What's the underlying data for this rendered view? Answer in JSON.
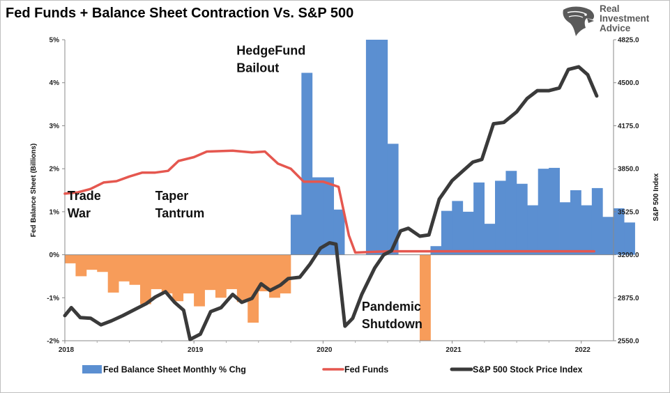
{
  "chart_data": {
    "type": "bar",
    "title": "Fed Funds + Balance Sheet Contraction Vs. S&P 500",
    "ylabel_left": "Fed Balance Sheet (Billions)",
    "ylabel_right": "S&P 500 Index",
    "xlabel": "",
    "left_ylim": [
      -2,
      5
    ],
    "left_ticks": [
      "-2%",
      "-1%",
      "0%",
      "1%",
      "2%",
      "3%",
      "4%",
      "5%"
    ],
    "right_ylim": [
      2550,
      4825
    ],
    "right_ticks": [
      "2550.0",
      "2875.0",
      "3200.0",
      "3525.0",
      "3850.0",
      "4175.0",
      "4500.0",
      "4825.0"
    ],
    "x_range": [
      2018.0,
      2022.25
    ],
    "x_ticks": [
      {
        "label": "2018",
        "value": 2018.0
      },
      {
        "label": "2019",
        "value": 2019.0
      },
      {
        "label": "2020",
        "value": 2020.0
      },
      {
        "label": "2021",
        "value": 2021.0
      },
      {
        "label": "2022",
        "value": 2022.0
      }
    ],
    "bar_colors": {
      "positive": "#5b8fd1",
      "negative": "#f79c5a"
    },
    "series": [
      {
        "name": "Fed Balance Sheet Monthly % Chg",
        "kind": "bar",
        "color": "#5b8fd1",
        "x_start": 2018.0,
        "x_step": 0.0833,
        "values": [
          -0.2,
          -0.5,
          -0.35,
          -0.4,
          -0.88,
          -0.62,
          -0.7,
          -1.15,
          -0.8,
          -0.9,
          -1.08,
          -0.9,
          -1.2,
          -0.82,
          -1.0,
          -0.8,
          -1.1,
          -1.58,
          -0.85,
          -1.0,
          -0.9,
          0.93,
          4.23,
          1.8,
          1.8,
          1.05,
          0.0,
          0.0,
          5.0,
          5.0,
          2.58,
          0.0,
          0.0,
          -2.0,
          0.2,
          1.02,
          1.25,
          1.0,
          1.68,
          0.72,
          1.72,
          1.95,
          1.65,
          1.15,
          2.0,
          2.02,
          1.22,
          1.5,
          1.15,
          1.55,
          0.88,
          1.08,
          0.75
        ]
      },
      {
        "name": "Fed Funds",
        "kind": "line",
        "axis": "left",
        "color": "#e5574f",
        "points": [
          [
            2018.0,
            1.42
          ],
          [
            2018.1,
            1.45
          ],
          [
            2018.2,
            1.53
          ],
          [
            2018.3,
            1.68
          ],
          [
            2018.4,
            1.71
          ],
          [
            2018.5,
            1.82
          ],
          [
            2018.6,
            1.91
          ],
          [
            2018.7,
            1.91
          ],
          [
            2018.8,
            1.95
          ],
          [
            2018.88,
            2.18
          ],
          [
            2019.0,
            2.27
          ],
          [
            2019.1,
            2.4
          ],
          [
            2019.3,
            2.42
          ],
          [
            2019.45,
            2.38
          ],
          [
            2019.55,
            2.4
          ],
          [
            2019.65,
            2.12
          ],
          [
            2019.75,
            2.0
          ],
          [
            2019.85,
            1.7
          ],
          [
            2020.0,
            1.7
          ],
          [
            2020.12,
            1.58
          ],
          [
            2020.2,
            0.45
          ],
          [
            2020.25,
            0.05
          ],
          [
            2020.5,
            0.08
          ],
          [
            2021.0,
            0.08
          ],
          [
            2021.5,
            0.08
          ],
          [
            2022.1,
            0.08
          ]
        ]
      },
      {
        "name": "S&P 500 Stock Price Index",
        "kind": "line",
        "axis": "right",
        "color": "#3a3a3a",
        "points": [
          [
            2018.0,
            2740
          ],
          [
            2018.05,
            2800
          ],
          [
            2018.12,
            2725
          ],
          [
            2018.2,
            2720
          ],
          [
            2018.28,
            2670
          ],
          [
            2018.36,
            2700
          ],
          [
            2018.45,
            2740
          ],
          [
            2018.55,
            2790
          ],
          [
            2018.63,
            2830
          ],
          [
            2018.7,
            2880
          ],
          [
            2018.78,
            2920
          ],
          [
            2018.85,
            2840
          ],
          [
            2018.92,
            2780
          ],
          [
            2018.97,
            2560
          ],
          [
            2019.05,
            2600
          ],
          [
            2019.13,
            2770
          ],
          [
            2019.21,
            2800
          ],
          [
            2019.3,
            2900
          ],
          [
            2019.37,
            2840
          ],
          [
            2019.45,
            2870
          ],
          [
            2019.52,
            2980
          ],
          [
            2019.59,
            2930
          ],
          [
            2019.67,
            2970
          ],
          [
            2019.73,
            3020
          ],
          [
            2019.82,
            3030
          ],
          [
            2019.9,
            3130
          ],
          [
            2019.98,
            3250
          ],
          [
            2020.05,
            3290
          ],
          [
            2020.1,
            3280
          ],
          [
            2020.17,
            2660
          ],
          [
            2020.23,
            2720
          ],
          [
            2020.3,
            2900
          ],
          [
            2020.4,
            3100
          ],
          [
            2020.47,
            3200
          ],
          [
            2020.53,
            3230
          ],
          [
            2020.6,
            3380
          ],
          [
            2020.66,
            3400
          ],
          [
            2020.75,
            3340
          ],
          [
            2020.82,
            3350
          ],
          [
            2020.9,
            3620
          ],
          [
            2021.0,
            3760
          ],
          [
            2021.08,
            3830
          ],
          [
            2021.16,
            3900
          ],
          [
            2021.23,
            3920
          ],
          [
            2021.32,
            4190
          ],
          [
            2021.4,
            4200
          ],
          [
            2021.5,
            4280
          ],
          [
            2021.58,
            4380
          ],
          [
            2021.66,
            4440
          ],
          [
            2021.75,
            4440
          ],
          [
            2021.83,
            4460
          ],
          [
            2021.9,
            4600
          ],
          [
            2021.98,
            4620
          ],
          [
            2022.05,
            4560
          ],
          [
            2022.12,
            4400
          ]
        ]
      }
    ],
    "annotations": [
      {
        "lines": [
          "Trade",
          "War"
        ],
        "x": 2018.02,
        "y": 1.27
      },
      {
        "lines": [
          "Taper",
          "Tantrum"
        ],
        "x": 2018.7,
        "y": 1.27
      },
      {
        "lines": [
          "HedgeFund",
          "Bailout"
        ],
        "x": 2019.33,
        "y": 4.65
      },
      {
        "lines": [
          "Pandemic",
          "Shutdown"
        ],
        "x": 2020.3,
        "y": -1.3
      }
    ],
    "legend": {
      "placement": "bottom",
      "items": [
        {
          "label": "Fed Balance Sheet Monthly % Chg",
          "kind": "bar",
          "color": "#5b8fd1"
        },
        {
          "label": "Fed Funds",
          "kind": "line",
          "color": "#e5574f"
        },
        {
          "label": "S&P 500 Stock Price Index",
          "kind": "line",
          "color": "#3a3a3a"
        }
      ]
    },
    "grid": false
  },
  "logo": {
    "lines": [
      "Real",
      "Investment",
      "Advice"
    ],
    "icon": "eagle-head-icon",
    "color": "#5a5a5a"
  }
}
